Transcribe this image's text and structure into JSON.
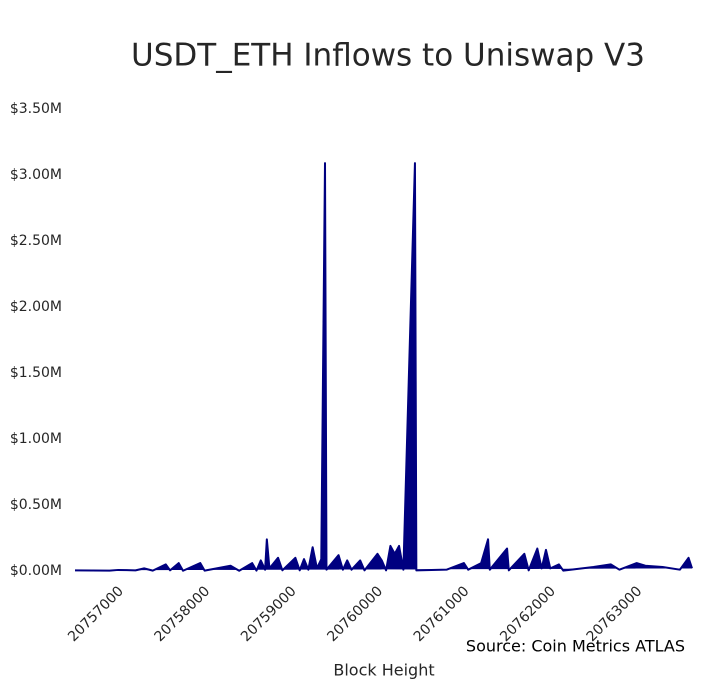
{
  "chart_data": {
    "type": "area",
    "title": "USDT_ETH Inflows to Uniswap V3",
    "xlabel": "Block Height",
    "source": "Source: Coin Metrics ATLAS",
    "color": "#000080",
    "x": [
      20756500,
      20756900,
      20757000,
      20757200,
      20757300,
      20757400,
      20757550,
      20757600,
      20757700,
      20757750,
      20757950,
      20758000,
      20758300,
      20758400,
      20758550,
      20758600,
      20758650,
      20758700,
      20758720,
      20758750,
      20758850,
      20758900,
      20759050,
      20759100,
      20759150,
      20759200,
      20759250,
      20759300,
      20759350,
      20759393,
      20759410,
      20759550,
      20759600,
      20759650,
      20759700,
      20759800,
      20759850,
      20760000,
      20760050,
      20760100,
      20760150,
      20760200,
      20760250,
      20760300,
      20760434,
      20760450,
      20760800,
      20761000,
      20761050,
      20761200,
      20761280,
      20761300,
      20761500,
      20761520,
      20761700,
      20761750,
      20761850,
      20761900,
      20761950,
      20762000,
      20762100,
      20762150,
      20762500,
      20762700,
      20762800,
      20763000,
      20763100,
      20763300,
      20763500,
      20763600,
      20763640
    ],
    "values": [
      5000,
      3000,
      8000,
      5000,
      20000,
      3000,
      50000,
      5000,
      60000,
      2000,
      60000,
      3000,
      40000,
      2000,
      60000,
      3000,
      80000,
      10000,
      240000,
      20000,
      100000,
      5000,
      100000,
      5000,
      90000,
      10000,
      180000,
      20000,
      90000,
      3090000,
      10000,
      120000,
      10000,
      80000,
      10000,
      80000,
      5000,
      130000,
      80000,
      5000,
      190000,
      130000,
      190000,
      10000,
      3090000,
      5000,
      10000,
      60000,
      10000,
      60000,
      240000,
      10000,
      170000,
      5000,
      130000,
      5000,
      170000,
      20000,
      160000,
      20000,
      50000,
      3000,
      30000,
      50000,
      10000,
      60000,
      40000,
      30000,
      10000,
      100000,
      20000
    ],
    "xlim": [
      20756500,
      20763640
    ],
    "xticks": [
      20757000,
      20758000,
      20759000,
      20760000,
      20761000,
      20762000,
      20763000
    ],
    "ylim": [
      0,
      3500000
    ],
    "yticks": [
      {
        "value": 0,
        "label": "$0.00M"
      },
      {
        "value": 500000,
        "label": "$0.50M"
      },
      {
        "value": 1000000,
        "label": "$1.00M"
      },
      {
        "value": 1500000,
        "label": "$1.50M"
      },
      {
        "value": 2000000,
        "label": "$2.00M"
      },
      {
        "value": 2500000,
        "label": "$2.50M"
      },
      {
        "value": 3000000,
        "label": "$3.00M"
      },
      {
        "value": 3500000,
        "label": "$3.50M"
      }
    ]
  }
}
